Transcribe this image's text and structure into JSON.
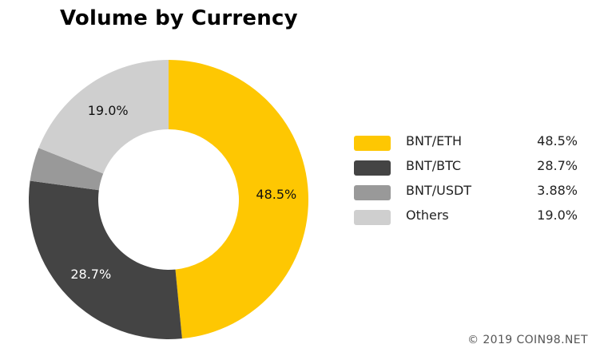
{
  "chart_data": {
    "type": "pie",
    "title": "Volume by Currency",
    "donut": true,
    "slices": [
      {
        "label": "BNT/ETH",
        "value": 48.5,
        "display": "48.5%",
        "color": "#FEC702",
        "slice_label": "48.5%",
        "label_color": "#111111"
      },
      {
        "label": "BNT/BTC",
        "value": 28.7,
        "display": "28.7%",
        "color": "#444444",
        "slice_label": "28.7%",
        "label_color": "#ffffff"
      },
      {
        "label": "BNT/USDT",
        "value": 3.88,
        "display": "3.88%",
        "color": "#999999",
        "slice_label": "",
        "label_color": "#111111"
      },
      {
        "label": "Others",
        "value": 19.0,
        "display": "19.0%",
        "color": "#CFCFCF",
        "slice_label": "19.0%",
        "label_color": "#111111"
      }
    ],
    "legend_position": "right"
  },
  "watermark": "© 2019 COIN98.NET"
}
